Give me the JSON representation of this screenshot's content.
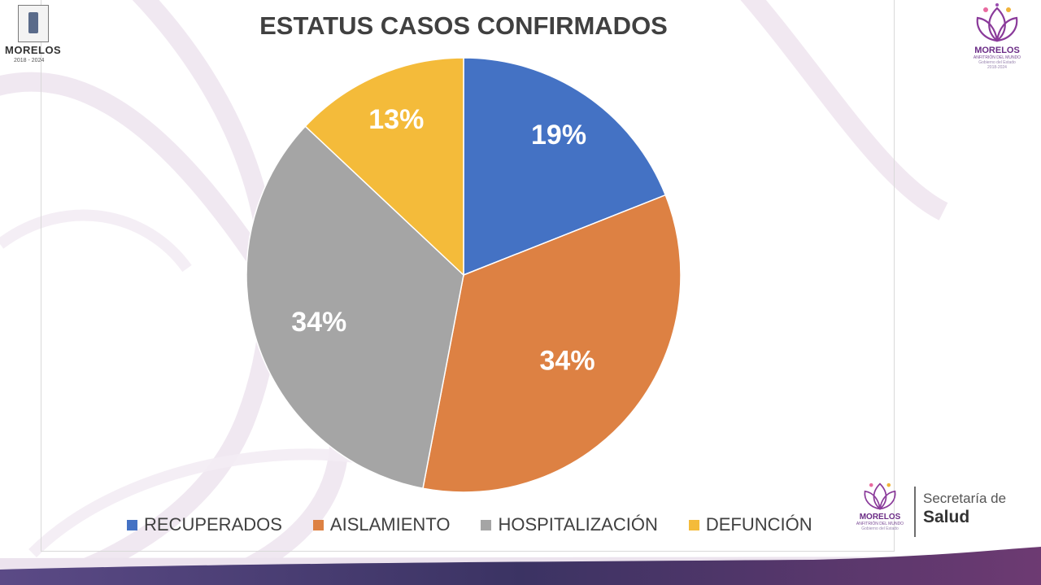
{
  "chart_data": {
    "type": "pie",
    "title": "ESTATUS CASOS CONFIRMADOS",
    "categories": [
      "RECUPERADOS",
      "AISLAMIENTO",
      "HOSPITALIZACIÓN",
      "DEFUNCIÓN"
    ],
    "values": [
      19,
      34,
      34,
      13
    ],
    "labels": [
      "19%",
      "34%",
      "34%",
      "13%"
    ],
    "colors": [
      "#4472c4",
      "#dd8143",
      "#a5a5a5",
      "#f4bb3a"
    ],
    "start_angle": "12 o'clock",
    "direction": "clockwise",
    "legend_position": "bottom"
  },
  "branding": {
    "seal_label": "MORELOS",
    "seal_years": "2018 - 2024",
    "seal_colors": [
      "#5a6b8a",
      "#f3f3f3"
    ],
    "logo_name": "MORELOS",
    "logo_tagline": "ANFITRIÓN DEL MUNDO",
    "logo_sub": "Gobierno del Estado",
    "logo_years": "2018-2024",
    "secretaria": "Secretaría de",
    "salud": "Salud",
    "accent_color": "#6b2c86",
    "footer_band_colors": [
      "#e4d6e6",
      "#3b3363"
    ]
  }
}
